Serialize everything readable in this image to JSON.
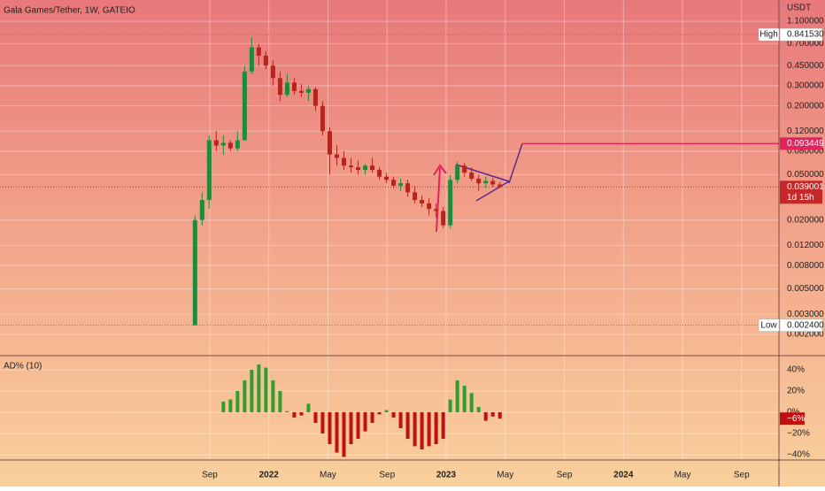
{
  "chart_data": [
    {
      "type": "candlestick",
      "title": "Gala Games/Tether, 1W, GATEIO",
      "unit": "USDT",
      "log_scale": true,
      "xlim": [
        -6.2,
        46.53
      ],
      "xticks": [
        {
          "value": 8,
          "label": "Sep"
        },
        {
          "value": 12,
          "label": "2022"
        },
        {
          "value": 16,
          "label": "May"
        },
        {
          "value": 20,
          "label": "Sep"
        },
        {
          "value": 24,
          "label": "2023"
        },
        {
          "value": 28,
          "label": "May"
        },
        {
          "value": 32,
          "label": "Sep"
        },
        {
          "value": 36,
          "label": "2024"
        },
        {
          "value": 40,
          "label": "May"
        },
        {
          "value": 44,
          "label": "Sep"
        }
      ],
      "ylim": [
        0.0013,
        1.69
      ],
      "yticks": [
        {
          "value": 1.1,
          "label": "1.100000"
        },
        {
          "value": 0.7,
          "label": "0.700000"
        },
        {
          "value": 0.45,
          "label": "0.450000"
        },
        {
          "value": 0.3,
          "label": "0.300000"
        },
        {
          "value": 0.2,
          "label": "0.200000"
        },
        {
          "value": 0.12,
          "label": "0.120000"
        },
        {
          "value": 0.08,
          "label": "0.080000"
        },
        {
          "value": 0.05,
          "label": "0.050000"
        },
        {
          "value": 0.02,
          "label": "0.020000"
        },
        {
          "value": 0.012,
          "label": "0.012000"
        },
        {
          "value": 0.008,
          "label": "0.008000"
        },
        {
          "value": 0.005,
          "label": "0.005000"
        },
        {
          "value": 0.003,
          "label": "0.003000"
        },
        {
          "value": 0.002,
          "label": "0.002000"
        }
      ],
      "up_color": "#1f8b3a",
      "down_color": "#b3261e",
      "x": [
        7.0,
        7.48,
        7.96,
        8.44,
        8.92,
        9.4,
        9.88,
        10.36,
        10.84,
        11.32,
        11.8,
        12.28,
        12.76,
        13.24,
        13.72,
        14.2,
        14.68,
        15.16,
        15.64,
        16.12,
        16.6,
        17.08,
        17.56,
        18.04,
        18.52,
        19.0,
        19.48,
        19.96,
        20.44,
        20.92,
        21.4,
        21.88,
        22.36,
        22.84,
        23.32,
        23.8,
        24.28,
        24.76,
        25.24,
        25.72,
        26.2,
        26.68,
        27.16,
        27.64
      ],
      "open": [
        0.0024,
        0.02,
        0.03,
        0.1,
        0.09,
        0.095,
        0.085,
        0.1,
        0.4,
        0.65,
        0.55,
        0.45,
        0.35,
        0.25,
        0.32,
        0.27,
        0.26,
        0.28,
        0.2,
        0.12,
        0.075,
        0.07,
        0.06,
        0.058,
        0.055,
        0.06,
        0.055,
        0.048,
        0.045,
        0.04,
        0.042,
        0.035,
        0.03,
        0.028,
        0.025,
        0.024,
        0.018,
        0.045,
        0.06,
        0.052,
        0.046,
        0.042,
        0.044,
        0.041
      ],
      "high": [
        0.022,
        0.035,
        0.11,
        0.12,
        0.11,
        0.1,
        0.12,
        0.45,
        0.8,
        0.7,
        0.6,
        0.5,
        0.4,
        0.38,
        0.35,
        0.31,
        0.3,
        0.29,
        0.22,
        0.13,
        0.09,
        0.08,
        0.07,
        0.066,
        0.062,
        0.07,
        0.058,
        0.052,
        0.048,
        0.046,
        0.045,
        0.04,
        0.033,
        0.031,
        0.028,
        0.026,
        0.05,
        0.065,
        0.063,
        0.058,
        0.05,
        0.048,
        0.047,
        0.043
      ],
      "low": [
        0.0024,
        0.018,
        0.025,
        0.08,
        0.075,
        0.08,
        0.08,
        0.1,
        0.38,
        0.45,
        0.42,
        0.3,
        0.22,
        0.24,
        0.25,
        0.24,
        0.22,
        0.18,
        0.11,
        0.05,
        0.06,
        0.055,
        0.052,
        0.05,
        0.05,
        0.052,
        0.045,
        0.042,
        0.038,
        0.036,
        0.032,
        0.028,
        0.026,
        0.022,
        0.021,
        0.017,
        0.017,
        0.042,
        0.048,
        0.044,
        0.036,
        0.038,
        0.039,
        0.038
      ],
      "close": [
        0.02,
        0.03,
        0.1,
        0.09,
        0.095,
        0.085,
        0.1,
        0.4,
        0.65,
        0.55,
        0.45,
        0.35,
        0.25,
        0.32,
        0.27,
        0.26,
        0.28,
        0.2,
        0.12,
        0.075,
        0.07,
        0.06,
        0.058,
        0.055,
        0.06,
        0.055,
        0.048,
        0.045,
        0.04,
        0.042,
        0.035,
        0.03,
        0.028,
        0.025,
        0.024,
        0.018,
        0.045,
        0.06,
        0.052,
        0.046,
        0.042,
        0.044,
        0.041,
        0.039
      ],
      "high_marker": {
        "name": "High",
        "value": 0.84153,
        "label": "0.841530"
      },
      "low_marker": {
        "name": "Low",
        "value": 0.0024,
        "label": "0.002400"
      },
      "target": {
        "value": 0.093449,
        "label": "0.093449",
        "color": "#e0245e"
      },
      "current": {
        "value": 0.039001,
        "label": "0.039001",
        "countdown": "1d 15h",
        "color": "#c62828"
      }
    },
    {
      "type": "histogram",
      "title": "AD% (10)",
      "ylim": [
        -45,
        53.3
      ],
      "yticks": [
        {
          "value": 40,
          "label": "40%"
        },
        {
          "value": 20,
          "label": "20%"
        },
        {
          "value": 0,
          "label": "0%"
        },
        {
          "value": -20,
          "label": "−20%"
        },
        {
          "value": -40,
          "label": "−40%"
        }
      ],
      "positive_color": "#2f9e2f",
      "negative_color": "#c21010",
      "x": [
        8.92,
        9.4,
        9.88,
        10.36,
        10.84,
        11.32,
        11.8,
        12.28,
        12.76,
        13.24,
        13.72,
        14.2,
        14.68,
        15.16,
        15.64,
        16.12,
        16.6,
        17.08,
        17.56,
        18.04,
        18.52,
        19.0,
        19.48,
        19.96,
        20.44,
        20.92,
        21.4,
        21.88,
        22.36,
        22.84,
        23.32,
        23.8,
        24.28,
        24.76,
        25.24,
        25.72,
        26.2,
        26.68,
        27.16,
        27.64
      ],
      "values": [
        10,
        12,
        20,
        30,
        40,
        45,
        42,
        30,
        20,
        1,
        -5,
        -3,
        8,
        -10,
        -20,
        -30,
        -38,
        -42,
        -30,
        -25,
        -18,
        -10,
        -2,
        2,
        -5,
        -15,
        -25,
        -32,
        -35,
        -32,
        -30,
        -25,
        12,
        30,
        25,
        18,
        5,
        -8,
        -4,
        -6
      ],
      "last": {
        "value": -6,
        "label": "−6%"
      }
    }
  ]
}
